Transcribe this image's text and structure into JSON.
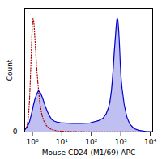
{
  "chart_data": {
    "type": "line",
    "xlabel": "Mouse CD24 (M1/69) APC",
    "ylabel": "Count",
    "log": "x",
    "grid": false,
    "xlim": [
      0.55,
      12000
    ],
    "ylim": [
      0,
      1.08
    ],
    "xticks": [
      {
        "value": 1,
        "label": "10⁰"
      },
      {
        "value": 10,
        "label": "10¹"
      },
      {
        "value": 100,
        "label": "10²"
      },
      {
        "value": 1000,
        "label": "10³"
      },
      {
        "value": 10000,
        "label": "10⁴"
      }
    ],
    "yticks": [
      0
    ],
    "series": [
      {
        "type": "line",
        "color": "#aa0000",
        "line_style": "dotted",
        "x": [
          0.55,
          0.6,
          0.65,
          0.7,
          0.75,
          0.8,
          0.85,
          0.9,
          0.95,
          1.0,
          1.05,
          1.1,
          1.15,
          1.2,
          1.3,
          1.4,
          1.6,
          1.8,
          2.1,
          2.5,
          3.0,
          3.6,
          4.5,
          5.5,
          7.0,
          9.0,
          12,
          18,
          30,
          50,
          100,
          200,
          500,
          1000,
          3000,
          10000
        ],
        "values": [
          0.02,
          0.03,
          0.05,
          0.09,
          0.16,
          0.28,
          0.44,
          0.62,
          0.8,
          0.93,
          1.0,
          0.98,
          0.93,
          0.85,
          0.7,
          0.56,
          0.38,
          0.25,
          0.15,
          0.09,
          0.055,
          0.035,
          0.022,
          0.015,
          0.01,
          0.007,
          0.005,
          0.004,
          0.003,
          0.002,
          0.0015,
          0.001,
          0.0008,
          0.0006,
          0.0004,
          0.0002
        ]
      },
      {
        "type": "area",
        "color": "#0000cc",
        "line_style": "solid",
        "x": [
          0.55,
          0.6,
          0.65,
          0.7,
          0.75,
          0.8,
          0.9,
          1.0,
          1.1,
          1.2,
          1.4,
          1.6,
          1.9,
          2.2,
          2.7,
          3.2,
          3.8,
          4.5,
          5.5,
          7.0,
          9,
          12,
          16,
          22,
          30,
          45,
          65,
          90,
          130,
          180,
          250,
          320,
          380,
          430,
          480,
          520,
          560,
          600,
          650,
          700,
          750,
          800,
          850,
          900,
          950,
          1000,
          1100,
          1300,
          1600,
          2000,
          2800,
          4000,
          7000,
          12000
        ],
        "values": [
          0.02,
          0.03,
          0.04,
          0.055,
          0.07,
          0.09,
          0.14,
          0.19,
          0.24,
          0.28,
          0.33,
          0.36,
          0.34,
          0.3,
          0.23,
          0.18,
          0.14,
          0.11,
          0.095,
          0.085,
          0.08,
          0.078,
          0.076,
          0.075,
          0.075,
          0.075,
          0.076,
          0.078,
          0.09,
          0.1,
          0.12,
          0.16,
          0.21,
          0.27,
          0.36,
          0.46,
          0.58,
          0.7,
          0.82,
          0.93,
          1.0,
          0.97,
          0.88,
          0.76,
          0.62,
          0.5,
          0.38,
          0.24,
          0.13,
          0.07,
          0.03,
          0.015,
          0.005,
          0.002
        ]
      }
    ]
  }
}
